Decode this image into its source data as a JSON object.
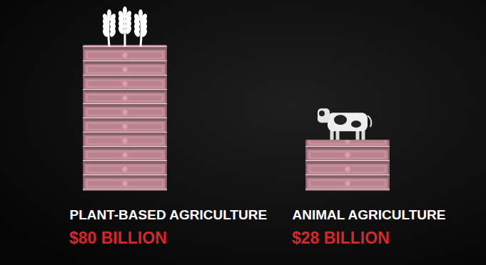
{
  "chart_data": {
    "type": "bar",
    "categories": [
      "PLANT-BASED AGRICULTURE",
      "ANIMAL AGRICULTURE"
    ],
    "values": [
      80,
      28
    ],
    "value_labels": [
      "$80 BILLION",
      "$28 BILLION"
    ],
    "data_labels": true,
    "tick_labels": "x",
    "color": "#b9848f"
  }
}
